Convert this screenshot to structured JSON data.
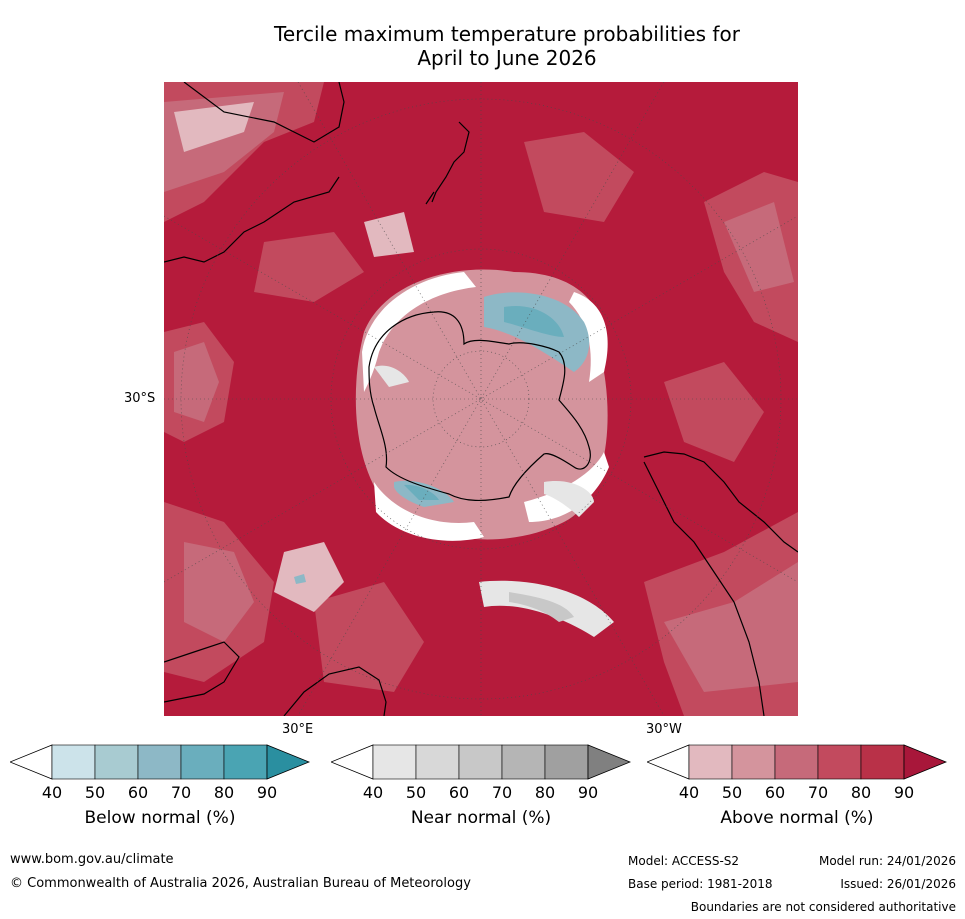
{
  "title": {
    "line1": "Tercile maximum temperature probabilities for",
    "line2": "April to June 2026"
  },
  "map": {
    "projection": "south-polar-stereographic",
    "lat_labels": [
      "30°S"
    ],
    "lon_labels": [
      "30°E",
      "30°W"
    ],
    "colors": {
      "ocean_above_90": "#b51b3b",
      "above_70": "#c24a5e",
      "above_60": "#c66a7a",
      "above_50": "#d4949d",
      "above_40": "#e2b9bf",
      "near_40": "#e6e6e6",
      "near_60": "#c8c8c8",
      "below_60": "#8db8c6",
      "below_70": "#6aaebd",
      "coast": "#000000",
      "border": "#8a8a8a"
    }
  },
  "colorbars": [
    {
      "label": "Below normal (%)",
      "ticks": [
        "40",
        "50",
        "60",
        "70",
        "80",
        "90"
      ],
      "colors": [
        "#ffffff",
        "#cce3ea",
        "#a8cbd1",
        "#8db8c6",
        "#6aaebd",
        "#4aa4b3",
        "#2a8fa0"
      ]
    },
    {
      "label": "Near normal (%)",
      "ticks": [
        "40",
        "50",
        "60",
        "70",
        "80",
        "90"
      ],
      "colors": [
        "#ffffff",
        "#e6e6e6",
        "#d8d8d8",
        "#c8c8c8",
        "#b5b5b5",
        "#a0a0a0",
        "#808080"
      ]
    },
    {
      "label": "Above normal (%)",
      "ticks": [
        "40",
        "50",
        "60",
        "70",
        "80",
        "90"
      ],
      "colors": [
        "#ffffff",
        "#e2b9bf",
        "#d4949d",
        "#c66a7a",
        "#c24a5e",
        "#b93148",
        "#a8173a"
      ]
    }
  ],
  "footer": {
    "website": "www.bom.gov.au/climate",
    "copyright": "© Commonwealth of Australia 2026, Australian Bureau of Meteorology",
    "model": "Model: ACCESS-S2",
    "model_run": "Model run: 24/01/2026",
    "base_period": "Base period: 1981-2018",
    "issued": "Issued: 26/01/2026",
    "disclaimer": "Boundaries are not considered authoritative"
  }
}
